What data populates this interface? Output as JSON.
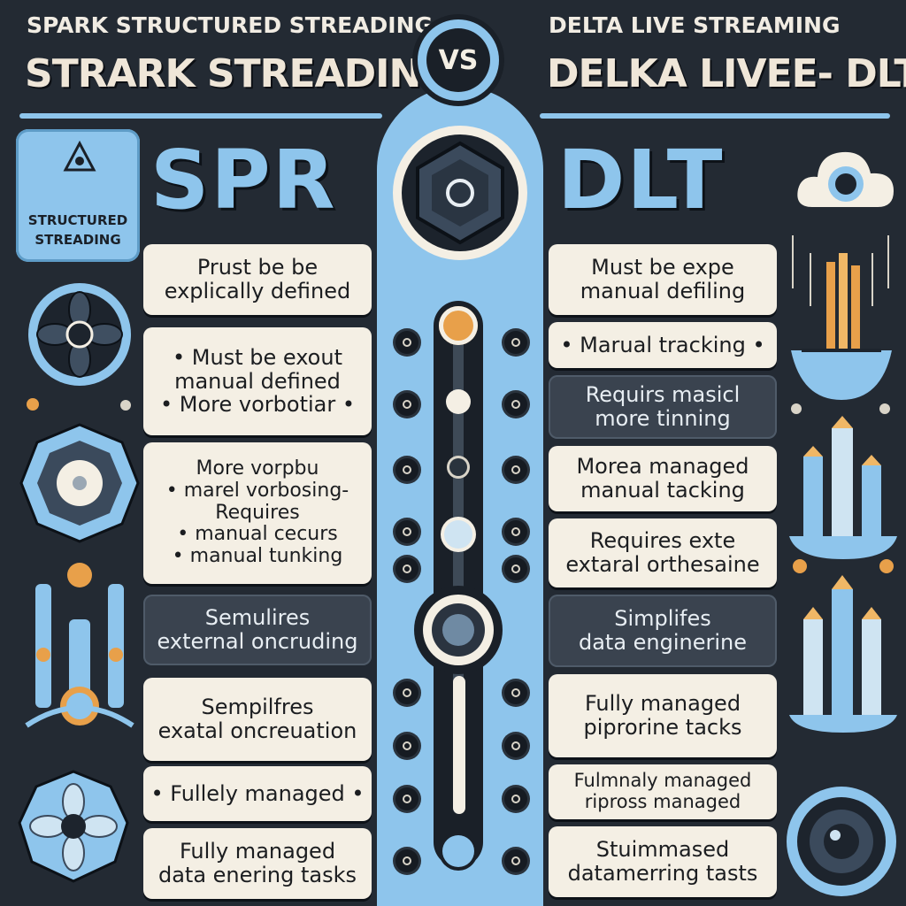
{
  "header": {
    "left_small": "SPARK STRUCTURED STREADING",
    "left_big": "STRARK STREADING",
    "vs": "VS",
    "right_small": "DELTA LIVE STREAMING",
    "right_big": "DELKA LIVEE- DLT"
  },
  "left": {
    "badge_label": [
      "STRUCTURED",
      "STREADING"
    ],
    "title": "SPR",
    "cards": [
      {
        "lines": [
          "Prust be be",
          "explically defined"
        ],
        "dark": false
      },
      {
        "lines": [
          "• Must be exout",
          "manual defined",
          "• More vorbotiar •"
        ],
        "dark": false
      },
      {
        "lines": [
          "More vorpbu",
          "• marel vorbosing-",
          "Requires",
          "• manual cecurs",
          "• manual tunking"
        ],
        "dark": false
      },
      {
        "lines": [
          "Semulires",
          "external oncruding"
        ],
        "dark": true
      },
      {
        "lines": [
          "Sempilfres",
          "exatal oncreuation"
        ],
        "dark": false
      },
      {
        "lines": [
          "• Fullely managed •"
        ],
        "dark": false
      },
      {
        "lines": [
          "Fully managed",
          "data enering tasks"
        ],
        "dark": false
      }
    ]
  },
  "right": {
    "title": "DLT",
    "cards": [
      {
        "lines": [
          "Must be expe",
          "manual defiling"
        ],
        "dark": false
      },
      {
        "lines": [
          "• Marual tracking •"
        ],
        "dark": false
      },
      {
        "lines": [
          "Requirs masicl",
          "more tinning"
        ],
        "dark": true
      },
      {
        "lines": [
          "Morea managed",
          "manual tacking"
        ],
        "dark": false
      },
      {
        "lines": [
          "Requires exte",
          "extaral orthesaine"
        ],
        "dark": false
      },
      {
        "lines": [
          "Simplifes",
          "data enginerine"
        ],
        "dark": true
      },
      {
        "lines": [
          "Fully managed",
          "piprorine tacks"
        ],
        "dark": false
      },
      {
        "lines": [
          "Fulmnaly managed",
          "ripross managed"
        ],
        "dark": false
      },
      {
        "lines": [
          "Stuimmased",
          "datamerring tasts"
        ],
        "dark": false
      }
    ]
  },
  "colors": {
    "background": "#232a33",
    "accent": "#8ec5ec",
    "card": "#f4efe4",
    "card_dark": "#3a434f",
    "orange": "#e8a04a"
  }
}
